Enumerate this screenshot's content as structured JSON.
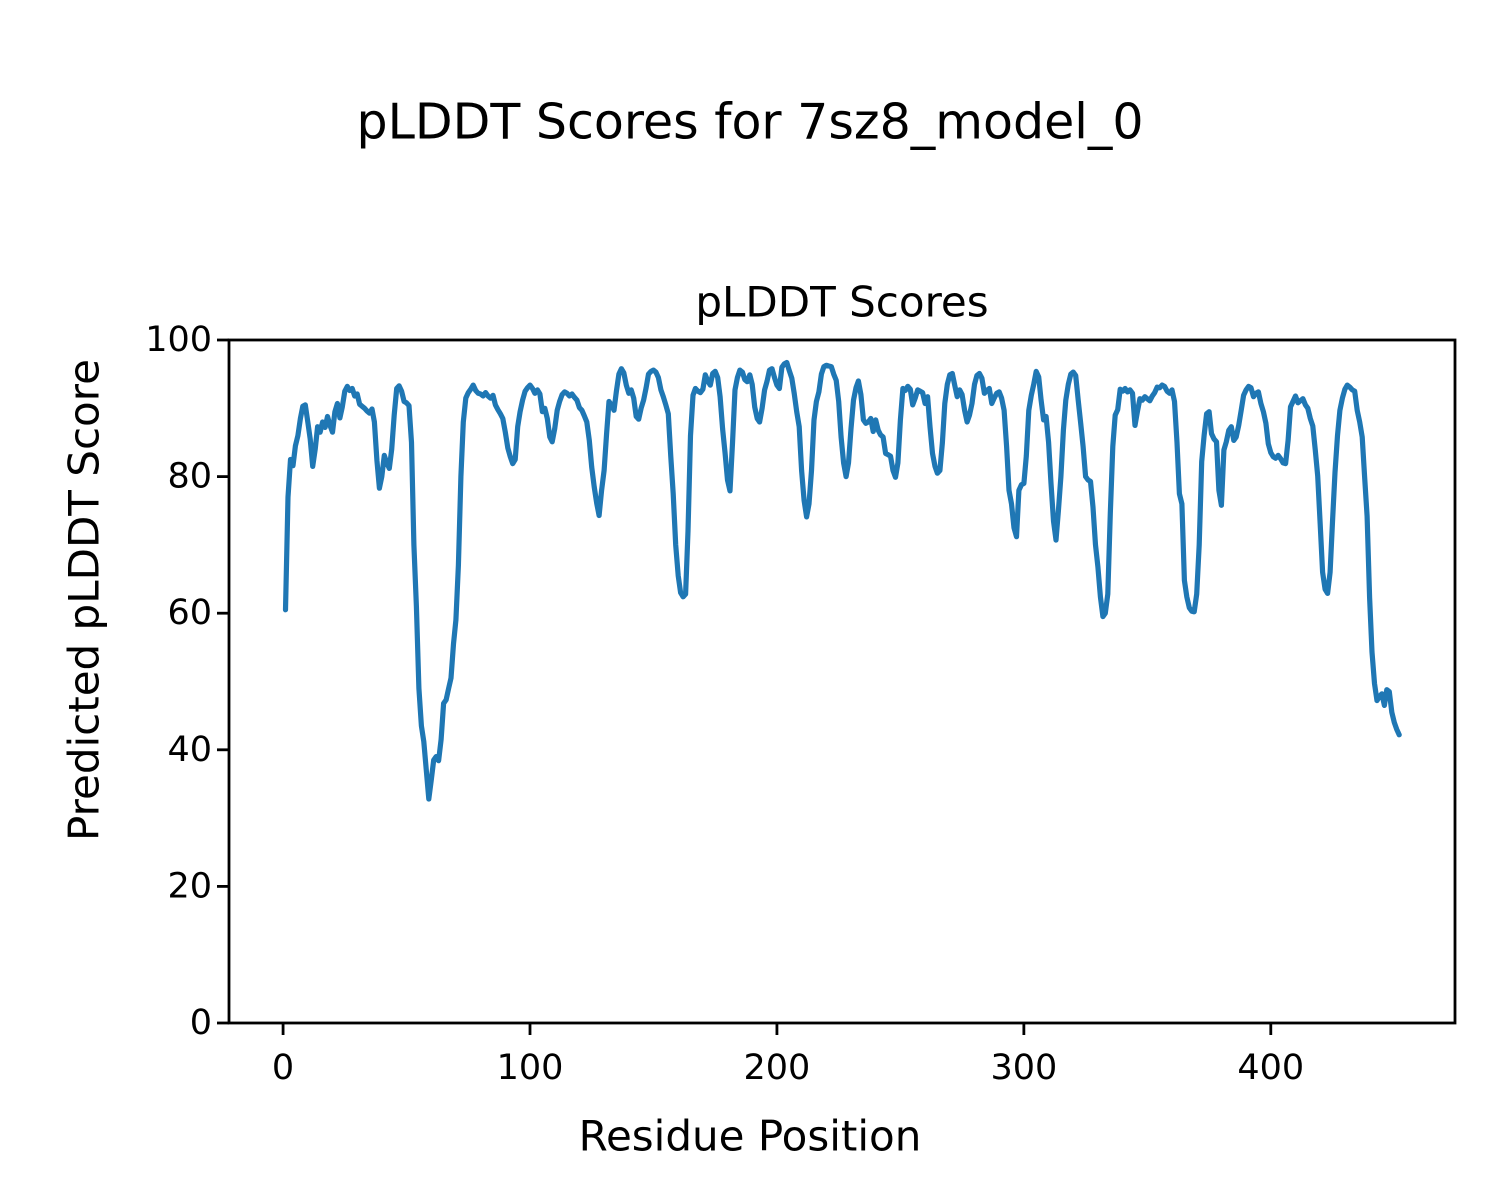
{
  "figure": {
    "suptitle": "pLDDT Scores for 7sz8_model_0"
  },
  "chart_data": {
    "type": "line",
    "title": "pLDDT Scores",
    "xlabel": "Residue Position",
    "ylabel": "Predicted pLDDT Score",
    "xlim": [
      -21.9,
      474.6
    ],
    "ylim": [
      0,
      100
    ],
    "x_ticks": [
      0,
      100,
      200,
      300,
      400
    ],
    "y_ticks": [
      0,
      20,
      40,
      60,
      80,
      100
    ],
    "grid": false,
    "legend": false,
    "line_color": "#1f77b4",
    "axis_color": "#000000",
    "series": [
      {
        "name": "pLDDT",
        "x_start": 1,
        "x_step": 1,
        "values": [
          60.5,
          77,
          82.5,
          81.6,
          84.5,
          86,
          88.5,
          90.3,
          90.5,
          88,
          85.5,
          81.5,
          84,
          87.3,
          86.5,
          88,
          87.2,
          88.8,
          87.5,
          86.5,
          89.5,
          90.7,
          88.6,
          90.2,
          92.5,
          93.2,
          92.6,
          92.9,
          91.8,
          92.1,
          90.6,
          90.3,
          90,
          89.6,
          89.3,
          89.9,
          88,
          82.4,
          78.3,
          80,
          83.1,
          82,
          81.2,
          84,
          89,
          92.9,
          93.3,
          92.5,
          91,
          90.8,
          90.4,
          85,
          70,
          61,
          49,
          43.5,
          41.2,
          37,
          32.8,
          35.5,
          38.5,
          39,
          38.4,
          41.5,
          46.8,
          47.3,
          48.9,
          50.5,
          55.5,
          59,
          67,
          80,
          88,
          91.5,
          92.3,
          92.8,
          93.4,
          92.6,
          92.2,
          92.1,
          91.8,
          92.3,
          91.8,
          91.5,
          91.9,
          90.5,
          89.8,
          89.2,
          88.5,
          86.5,
          84.2,
          82.9,
          81.9,
          82.5,
          87.3,
          89.5,
          91.2,
          92.5,
          93,
          93.4,
          92.9,
          92.2,
          92.7,
          92.1,
          89.5,
          90,
          88.5,
          85.8,
          85.1,
          87,
          89.7,
          91,
          92,
          92.4,
          92.2,
          91.8,
          92.1,
          91.6,
          91.2,
          90.1,
          89.7,
          88.9,
          88,
          85.3,
          81.4,
          78.5,
          76.1,
          74.3,
          78,
          80.9,
          86.3,
          91,
          90.5,
          89.7,
          92.5,
          95,
          95.8,
          95.2,
          93.4,
          92.2,
          92.7,
          91.5,
          88.8,
          88.4,
          90,
          91.2,
          93,
          95,
          95.4,
          95.6,
          95.3,
          94.5,
          92.7,
          91.7,
          90.5,
          89.2,
          82.9,
          77.5,
          70,
          65.5,
          63,
          62.4,
          62.8,
          72,
          86,
          91.9,
          92.9,
          92.5,
          92.3,
          92.8,
          94.9,
          94,
          93.4,
          95.1,
          95.4,
          94.5,
          91.7,
          87,
          83.4,
          79.5,
          77.9,
          84.9,
          92.7,
          94.5,
          95.6,
          95.3,
          94.2,
          93.9,
          94.9,
          93.5,
          90.2,
          88.5,
          88,
          90,
          92.7,
          94,
          95.6,
          95.8,
          94.5,
          93.4,
          92.9,
          96,
          96.5,
          96.7,
          95.5,
          94.4,
          92.2,
          89.5,
          87.3,
          80.9,
          76.5,
          74.1,
          76,
          80.9,
          88.3,
          91,
          92.4,
          95,
          96.1,
          96.3,
          96.2,
          96.1,
          95,
          94.1,
          91,
          85.8,
          82,
          80,
          82,
          87,
          91.2,
          93,
          94,
          92,
          88.3,
          87.8,
          88,
          88.5,
          86.6,
          88.3,
          86.8,
          86.1,
          85.8,
          83.4,
          83.2,
          83,
          80.9,
          79.9,
          82,
          88.3,
          92.9,
          92.6,
          93.2,
          92.8,
          90.5,
          91.5,
          92.7,
          92.5,
          92.3,
          90.7,
          91.7,
          87.3,
          83.4,
          81.5,
          80.5,
          80.9,
          85,
          90.7,
          93.5,
          94.9,
          95.1,
          93.4,
          91.7,
          92.7,
          92,
          89.7,
          88,
          89,
          90.7,
          93.5,
          94.8,
          95.1,
          94.4,
          92.2,
          92.6,
          92.9,
          90.7,
          91.5,
          92.2,
          92.4,
          91.5,
          89.7,
          84.4,
          78,
          76,
          72.5,
          71.2,
          78,
          78.8,
          79,
          83,
          89.7,
          91.9,
          93.5,
          95.4,
          94.6,
          91.2,
          88.3,
          88.8,
          85,
          79,
          73.5,
          70.7,
          75,
          80,
          86.8,
          91.2,
          93.5,
          95,
          95.3,
          94.8,
          91.2,
          87.8,
          84.4,
          80,
          79.5,
          79.3,
          75.5,
          70,
          66.8,
          62.4,
          59.5,
          60,
          62.8,
          74.6,
          84.4,
          89,
          89.8,
          92.8,
          92.5,
          92.9,
          92.4,
          92.7,
          92.2,
          87.5,
          89.5,
          91.4,
          91.2,
          91.7,
          91.4,
          91.1,
          91.8,
          92.3,
          93.1,
          93,
          93.4,
          93.2,
          92.5,
          92.2,
          92.7,
          91,
          85,
          77.5,
          76,
          64.8,
          62.4,
          60.8,
          60.3,
          60.2,
          62.8,
          70,
          82.2,
          86,
          89.2,
          89.5,
          86.3,
          85.5,
          85.1,
          78,
          75.8,
          83.9,
          85.1,
          86.8,
          87.3,
          85.3,
          85.8,
          87.5,
          89.7,
          91.9,
          92.7,
          93.2,
          93,
          91.7,
          92.2,
          92.4,
          90.7,
          89.5,
          87.8,
          84.8,
          83.5,
          82.9,
          82.7,
          83.1,
          82.6,
          82,
          81.9,
          85.3,
          90.2,
          91,
          91.8,
          90.8,
          91.1,
          91.4,
          90.5,
          90,
          88.5,
          87.4,
          84,
          80.1,
          73,
          66,
          63.5,
          62.9,
          66,
          73.4,
          80.6,
          86,
          89.7,
          91.5,
          92.8,
          93.4,
          93.1,
          92.7,
          92.5,
          89.7,
          88,
          85.8,
          80,
          74.2,
          62.3,
          54.3,
          49.7,
          47.2,
          47.8,
          48.2,
          46.5,
          48.8,
          48.5,
          45.5,
          44,
          43,
          42.2
        ]
      }
    ]
  }
}
